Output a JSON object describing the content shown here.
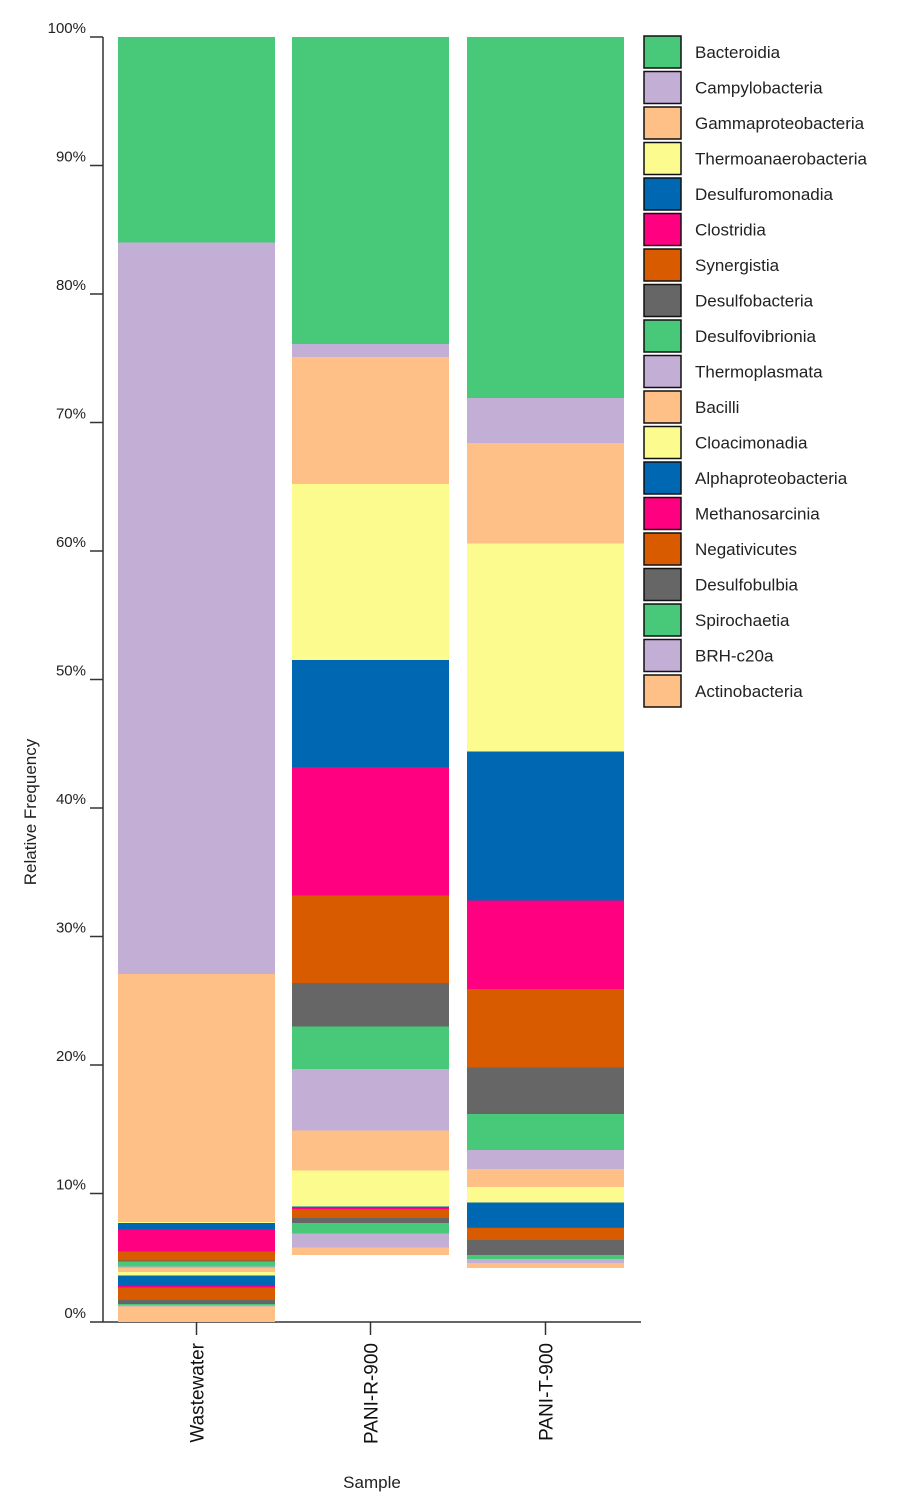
{
  "chart_data": {
    "type": "bar",
    "stacked": true,
    "title": "",
    "xlabel": "Sample",
    "ylabel": "Relative Frequency",
    "ylim": [
      0,
      100
    ],
    "yticks": [
      "0%",
      "10%",
      "20%",
      "30%",
      "40%",
      "50%",
      "60%",
      "70%",
      "80%",
      "90%",
      "100%"
    ],
    "categories": [
      "Wastewater",
      "PANI-R-900",
      "PANI-T-900"
    ],
    "legend_position": "top-right",
    "series": [
      {
        "name": "Actinobacteria",
        "color": "#FFC087",
        "values": [
          1.2,
          0.6,
          0.4
        ]
      },
      {
        "name": "BRH-c20a",
        "color": "#C3AED6",
        "values": [
          0.1,
          1.1,
          0.3
        ]
      },
      {
        "name": "Spirochaetia",
        "color": "#48C97A",
        "values": [
          0.1,
          0.8,
          0.3
        ]
      },
      {
        "name": "Desulfobulbia",
        "color": "#666666",
        "values": [
          0.3,
          0.4,
          1.2
        ]
      },
      {
        "name": "Negativicutes",
        "color": "#D95B00",
        "values": [
          1.0,
          0.7,
          0.9
        ]
      },
      {
        "name": "Methanosarcinia",
        "color": "#FF0080",
        "values": [
          0.1,
          0.1,
          0.1
        ]
      },
      {
        "name": "Alphaproteobacteria",
        "color": "#0068B3",
        "values": [
          0.8,
          0.1,
          1.9
        ]
      },
      {
        "name": "Cloacimonadia",
        "color": "#FBFB8E",
        "values": [
          0.3,
          2.8,
          1.2
        ]
      },
      {
        "name": "Bacilli",
        "color": "#FFC087",
        "values": [
          0.3,
          3.1,
          1.4
        ]
      },
      {
        "name": "Thermoplasmata",
        "color": "#C3AED6",
        "values": [
          0.1,
          4.8,
          1.5
        ]
      },
      {
        "name": "Desulfovibrionia",
        "color": "#48C97A",
        "values": [
          0.4,
          3.3,
          2.8
        ]
      },
      {
        "name": "Desulfobacteria",
        "color": "#666666",
        "values": [
          0.1,
          3.4,
          3.6
        ]
      },
      {
        "name": "Synergistia",
        "color": "#D95B00",
        "values": [
          0.7,
          6.8,
          6.1
        ]
      },
      {
        "name": "Clostridia",
        "color": "#FF0080",
        "values": [
          1.7,
          10.0,
          6.9
        ]
      },
      {
        "name": "Desulfuromonadia",
        "color": "#0068B3",
        "values": [
          0.5,
          8.3,
          11.6
        ]
      },
      {
        "name": "Thermoanaerobacteria",
        "color": "#FBFB8E",
        "values": [
          0.1,
          13.7,
          16.2
        ]
      },
      {
        "name": "Gammaproteobacteria",
        "color": "#FFC087",
        "values": [
          19.3,
          9.9,
          7.8
        ]
      },
      {
        "name": "Campylobacteria",
        "color": "#C3AED6",
        "values": [
          56.9,
          1.0,
          3.5
        ]
      },
      {
        "name": "Bacteroidia",
        "color": "#48C97A",
        "values": [
          16.0,
          23.9,
          28.1
        ]
      }
    ]
  }
}
